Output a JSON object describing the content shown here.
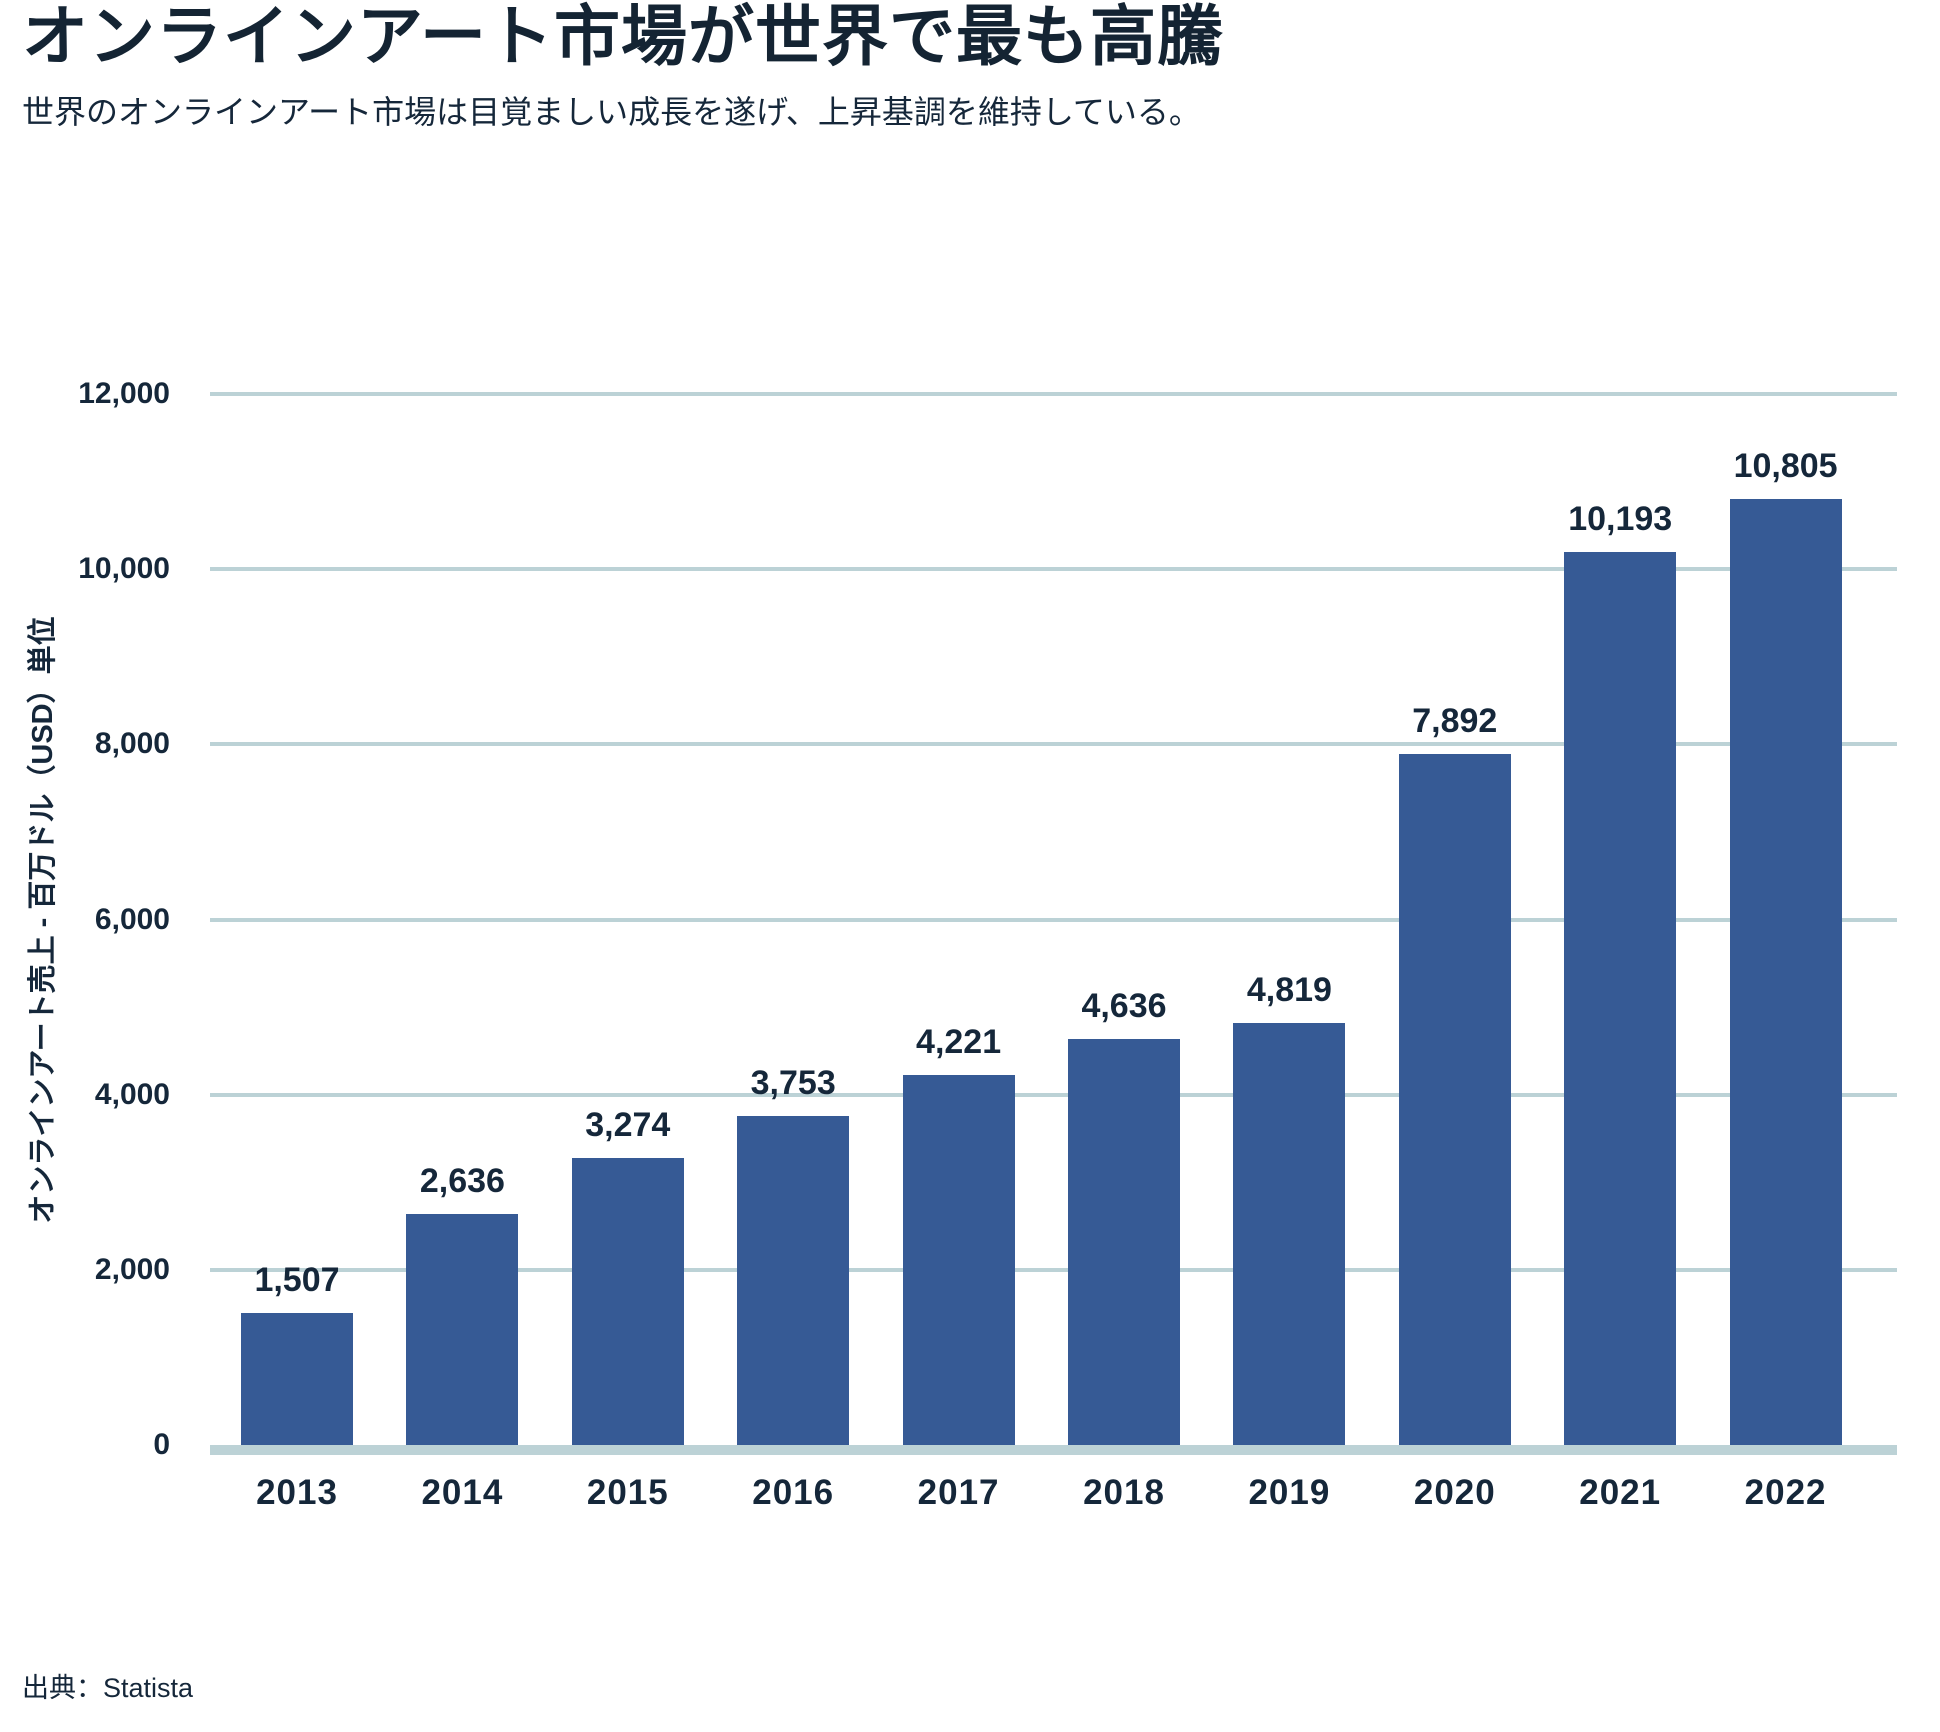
{
  "header": {
    "title": "オンラインアート市場が世界で最も高騰",
    "subtitle": "世界のオンラインアート市場は目覚ましい成長を遂げ、上昇基調を維持している。"
  },
  "chart_data": {
    "type": "bar",
    "title": "オンラインアート市場が世界で最も高騰",
    "categories": [
      "2013",
      "2014",
      "2015",
      "2016",
      "2017",
      "2018",
      "2019",
      "2020",
      "2021",
      "2022"
    ],
    "values": [
      1507,
      2636,
      3274,
      3753,
      4221,
      4636,
      4819,
      7892,
      10193,
      10805
    ],
    "value_labels": [
      "1,507",
      "2,636",
      "3,274",
      "3,753",
      "4,221",
      "4,636",
      "4,819",
      "7,892",
      "10,193",
      "10,805"
    ],
    "xlabel": "",
    "ylabel": "オンラインアート売上 - 百万ドル（USD）単位",
    "ylim": [
      0,
      12000
    ],
    "ytick_values": [
      0,
      2000,
      4000,
      6000,
      8000,
      10000,
      12000
    ],
    "ytick_labels": [
      "0",
      "2,000",
      "4,000",
      "6,000",
      "8,000",
      "10,000",
      "12,000"
    ],
    "grid": true,
    "legend": false,
    "bar_color": "#365A95",
    "grid_color": "#BCD2D6",
    "baseline_color": "#BCD2D6",
    "text_color": "#15273A"
  },
  "footer": {
    "source": "出典：Statista"
  }
}
